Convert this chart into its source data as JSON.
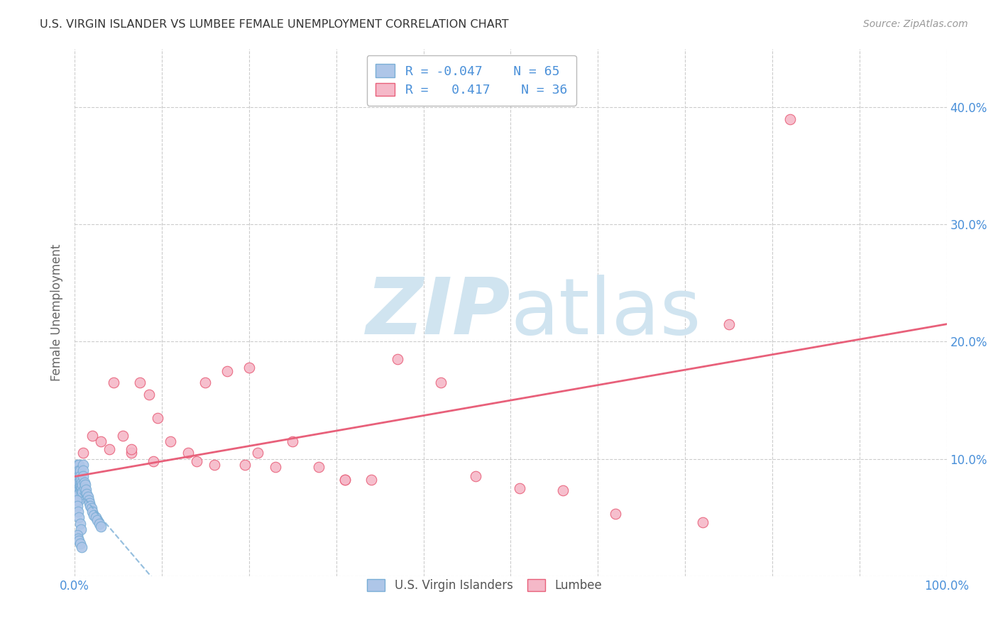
{
  "title": "U.S. VIRGIN ISLANDER VS LUMBEE FEMALE UNEMPLOYMENT CORRELATION CHART",
  "source": "Source: ZipAtlas.com",
  "ylabel": "Female Unemployment",
  "xlim": [
    0.0,
    1.0
  ],
  "ylim": [
    0.0,
    0.45
  ],
  "xticks": [
    0.0,
    0.1,
    0.2,
    0.3,
    0.4,
    0.5,
    0.6,
    0.7,
    0.8,
    0.9,
    1.0
  ],
  "yticks": [
    0.0,
    0.1,
    0.2,
    0.3,
    0.4
  ],
  "ytick_labels": [
    "",
    "10.0%",
    "20.0%",
    "30.0%",
    "40.0%"
  ],
  "legend_labels": [
    "U.S. Virgin Islanders",
    "Lumbee"
  ],
  "legend_r1": "-0.047",
  "legend_n1": "65",
  "legend_r2": "0.417",
  "legend_n2": "36",
  "series1_color": "#aec6e8",
  "series2_color": "#f5b8c8",
  "line1_color": "#7aaed6",
  "line2_color": "#e8607a",
  "watermark_color": "#d0e4f0",
  "background_color": "#ffffff",
  "grid_color": "#cccccc",
  "title_color": "#333333",
  "axis_label_color": "#4a90d9",
  "ylabel_color": "#666666",
  "series1_x": [
    0.002,
    0.002,
    0.002,
    0.002,
    0.003,
    0.003,
    0.003,
    0.003,
    0.003,
    0.003,
    0.004,
    0.004,
    0.004,
    0.004,
    0.004,
    0.004,
    0.005,
    0.005,
    0.005,
    0.005,
    0.005,
    0.005,
    0.005,
    0.006,
    0.006,
    0.006,
    0.006,
    0.007,
    0.007,
    0.007,
    0.008,
    0.008,
    0.008,
    0.009,
    0.009,
    0.01,
    0.01,
    0.01,
    0.011,
    0.011,
    0.012,
    0.013,
    0.014,
    0.015,
    0.016,
    0.017,
    0.018,
    0.019,
    0.02,
    0.022,
    0.024,
    0.026,
    0.028,
    0.03,
    0.002,
    0.003,
    0.004,
    0.005,
    0.006,
    0.007,
    0.003,
    0.004,
    0.005,
    0.006,
    0.008
  ],
  "series1_y": [
    0.085,
    0.075,
    0.072,
    0.068,
    0.095,
    0.09,
    0.085,
    0.08,
    0.075,
    0.07,
    0.09,
    0.085,
    0.08,
    0.075,
    0.07,
    0.065,
    0.095,
    0.09,
    0.085,
    0.08,
    0.075,
    0.07,
    0.065,
    0.09,
    0.085,
    0.08,
    0.075,
    0.082,
    0.078,
    0.074,
    0.08,
    0.075,
    0.07,
    0.078,
    0.072,
    0.095,
    0.09,
    0.085,
    0.08,
    0.075,
    0.078,
    0.074,
    0.07,
    0.068,
    0.065,
    0.062,
    0.06,
    0.058,
    0.055,
    0.052,
    0.05,
    0.048,
    0.045,
    0.042,
    0.065,
    0.06,
    0.055,
    0.05,
    0.045,
    0.04,
    0.035,
    0.032,
    0.03,
    0.028,
    0.025
  ],
  "series2_x": [
    0.01,
    0.02,
    0.03,
    0.045,
    0.055,
    0.065,
    0.075,
    0.085,
    0.095,
    0.11,
    0.13,
    0.15,
    0.16,
    0.175,
    0.195,
    0.21,
    0.23,
    0.25,
    0.28,
    0.31,
    0.34,
    0.37,
    0.42,
    0.46,
    0.51,
    0.56,
    0.62,
    0.72,
    0.82,
    0.04,
    0.065,
    0.09,
    0.14,
    0.2,
    0.31,
    0.75
  ],
  "series2_y": [
    0.105,
    0.12,
    0.115,
    0.165,
    0.12,
    0.105,
    0.165,
    0.155,
    0.135,
    0.115,
    0.105,
    0.165,
    0.095,
    0.175,
    0.095,
    0.105,
    0.093,
    0.115,
    0.093,
    0.082,
    0.082,
    0.185,
    0.165,
    0.085,
    0.075,
    0.073,
    0.053,
    0.046,
    0.39,
    0.108,
    0.108,
    0.098,
    0.098,
    0.178,
    0.082,
    0.215
  ],
  "line1_x_start": 0.0,
  "line1_x_end": 0.5,
  "line2_x_start": 0.0,
  "line2_x_end": 1.0,
  "line2_y_start": 0.085,
  "line2_y_end": 0.215
}
